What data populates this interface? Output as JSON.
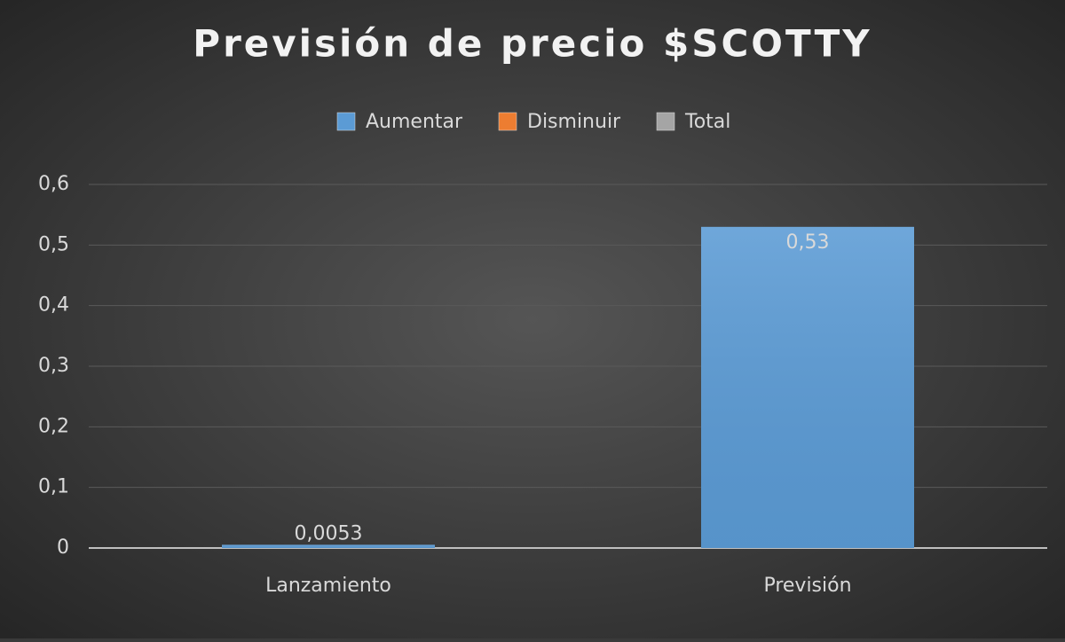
{
  "chart_data": {
    "type": "bar",
    "title": "Previsión de precio $SCOTTY",
    "legend": [
      {
        "name": "Aumentar",
        "color": "#5b9bd5"
      },
      {
        "name": "Disminuir",
        "color": "#ed7d31"
      },
      {
        "name": "Total",
        "color": "#a5a5a5"
      }
    ],
    "categories": [
      "Lanzamiento",
      "Previsión"
    ],
    "values": [
      0.0053,
      0.53
    ],
    "value_labels": [
      "0,0053",
      "0,53"
    ],
    "color": "#5b9bd5",
    "ylim": [
      0,
      0.6
    ],
    "yticks": [
      0,
      {
        "value": 0.1,
        "label": "0,1"
      },
      {
        "value": 0.2,
        "label": "0,2"
      },
      {
        "value": 0.3,
        "label": "0,3"
      },
      {
        "value": 0.4,
        "label": "0,4"
      },
      {
        "value": 0.5,
        "label": "0,5"
      },
      {
        "value": 0.6,
        "label": "0,6"
      }
    ],
    "grid": true
  }
}
